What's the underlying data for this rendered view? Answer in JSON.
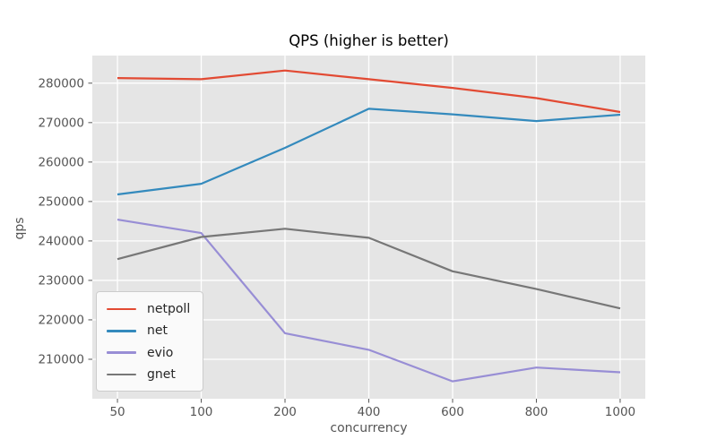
{
  "chart_data": {
    "type": "line",
    "title": "QPS (higher is better)",
    "xlabel": "concurrency",
    "ylabel": "qps",
    "categories": [
      "50",
      "100",
      "200",
      "400",
      "600",
      "800",
      "1000"
    ],
    "series": [
      {
        "name": "netpoll",
        "color": "#E24A33",
        "values": [
          281300,
          281000,
          283200,
          281000,
          278800,
          276200,
          272700
        ]
      },
      {
        "name": "net",
        "color": "#348ABD",
        "values": [
          251800,
          254500,
          263600,
          273500,
          272100,
          270400,
          272000
        ]
      },
      {
        "name": "evio",
        "color": "#988ED5",
        "values": [
          245400,
          242000,
          216600,
          212400,
          204400,
          207900,
          206700
        ]
      },
      {
        "name": "gnet",
        "color": "#777777",
        "values": [
          235400,
          241000,
          243100,
          240800,
          232300,
          227800,
          222900
        ]
      }
    ],
    "yticks": [
      210000,
      220000,
      230000,
      240000,
      250000,
      260000,
      270000,
      280000
    ],
    "ylim": [
      200000,
      287000
    ],
    "grid": true,
    "legend_position": "lower left",
    "colors": {
      "figure_bg": "#FFFFFF",
      "plot_bg": "#E5E5E5",
      "grid": "#FFFFFF",
      "tick": "#555555",
      "tick_label": "#555555",
      "title": "#000000"
    }
  }
}
